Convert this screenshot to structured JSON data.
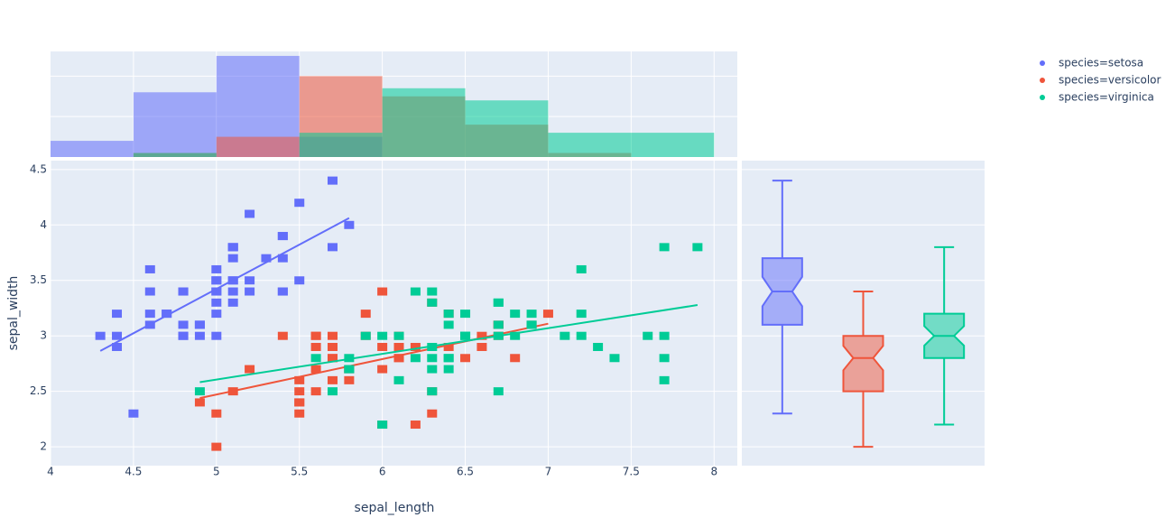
{
  "chart_data": [
    {
      "type": "scatter",
      "xlabel": "sepal_length",
      "ylabel": "sepal_width",
      "xlim": [
        4,
        8.14
      ],
      "ylim": [
        1.83,
        4.58
      ],
      "xticks": [
        4,
        4.5,
        5,
        5.5,
        6,
        6.5,
        7,
        7.5,
        8
      ],
      "yticks": [
        2,
        2.5,
        3,
        3.5,
        4,
        4.5
      ],
      "grid": true,
      "legend": "top-right",
      "series": [
        {
          "name": "species=setosa",
          "color": "#636efa",
          "x": [
            5.1,
            4.9,
            4.7,
            4.6,
            5.0,
            5.4,
            4.6,
            5.0,
            4.4,
            4.9,
            5.4,
            4.8,
            4.8,
            4.3,
            5.8,
            5.7,
            5.4,
            5.1,
            5.7,
            5.1,
            5.4,
            5.1,
            4.6,
            5.1,
            4.8,
            5.0,
            5.0,
            5.2,
            5.2,
            4.7,
            4.8,
            5.4,
            5.2,
            5.5,
            4.9,
            5.0,
            5.5,
            4.9,
            4.4,
            5.1,
            5.0,
            4.5,
            4.4,
            5.0,
            5.1,
            4.8,
            5.1,
            4.6,
            5.3,
            5.0
          ],
          "values": [
            3.5,
            3.0,
            3.2,
            3.1,
            3.6,
            3.9,
            3.4,
            3.4,
            2.9,
            3.1,
            3.7,
            3.4,
            3.0,
            3.0,
            4.0,
            4.4,
            3.9,
            3.5,
            3.8,
            3.8,
            3.4,
            3.7,
            3.6,
            3.3,
            3.4,
            3.0,
            3.4,
            3.5,
            3.4,
            3.2,
            3.1,
            3.4,
            4.1,
            4.2,
            3.1,
            3.2,
            3.5,
            3.1,
            3.0,
            3.4,
            3.5,
            2.3,
            3.2,
            3.5,
            3.8,
            3.0,
            3.8,
            3.2,
            3.7,
            3.3
          ],
          "trendline": {
            "x": [
              4.3,
              5.8
            ],
            "values": [
              2.864,
              4.062
            ]
          }
        },
        {
          "name": "species=versicolor",
          "color": "#ef553b",
          "x": [
            7.0,
            6.4,
            6.9,
            5.5,
            6.5,
            5.7,
            6.3,
            4.9,
            6.6,
            5.2,
            5.0,
            5.9,
            6.0,
            6.1,
            5.6,
            6.7,
            5.6,
            5.8,
            6.2,
            5.6,
            5.9,
            6.1,
            6.3,
            6.1,
            6.4,
            6.6,
            6.8,
            6.7,
            6.0,
            5.7,
            5.5,
            5.5,
            5.8,
            6.0,
            5.4,
            6.0,
            6.7,
            6.3,
            5.6,
            5.5,
            5.5,
            6.1,
            5.8,
            5.0,
            5.6,
            5.7,
            5.7,
            6.2,
            5.1,
            5.7
          ],
          "values": [
            3.2,
            3.2,
            3.1,
            2.3,
            2.8,
            2.8,
            3.3,
            2.4,
            2.9,
            2.7,
            2.0,
            3.0,
            2.2,
            2.9,
            2.9,
            3.1,
            3.0,
            2.7,
            2.2,
            2.5,
            3.2,
            2.8,
            2.5,
            2.8,
            2.9,
            3.0,
            2.8,
            3.0,
            2.9,
            2.6,
            2.4,
            2.4,
            2.7,
            2.7,
            3.0,
            3.4,
            3.1,
            2.3,
            3.0,
            2.5,
            2.6,
            3.0,
            2.6,
            2.3,
            2.7,
            3.0,
            2.9,
            2.9,
            2.5,
            2.8
          ],
          "trendline": {
            "x": [
              4.9,
              7.0
            ],
            "values": [
              2.439,
              3.11
            ]
          }
        },
        {
          "name": "species=virginica",
          "color": "#00cc96",
          "x": [
            6.3,
            5.8,
            7.1,
            6.3,
            6.5,
            7.6,
            4.9,
            7.3,
            6.7,
            7.2,
            6.5,
            6.4,
            6.8,
            5.7,
            5.8,
            6.4,
            6.5,
            7.7,
            7.7,
            6.0,
            6.9,
            5.6,
            7.7,
            6.3,
            6.7,
            7.2,
            6.2,
            6.1,
            6.4,
            7.2,
            7.4,
            7.9,
            6.4,
            6.3,
            6.1,
            7.7,
            6.3,
            6.4,
            6.0,
            6.9,
            6.7,
            6.9,
            5.8,
            6.8,
            6.7,
            6.7,
            6.3,
            6.5,
            6.2,
            5.9
          ],
          "values": [
            3.3,
            2.7,
            3.0,
            2.9,
            3.0,
            3.0,
            2.5,
            2.9,
            2.5,
            3.6,
            3.2,
            2.7,
            3.0,
            2.5,
            2.8,
            3.2,
            3.0,
            3.8,
            2.6,
            2.2,
            3.2,
            2.8,
            2.8,
            2.7,
            3.3,
            3.2,
            2.8,
            3.0,
            2.8,
            3.0,
            2.8,
            3.8,
            2.8,
            2.8,
            2.6,
            3.0,
            3.4,
            3.1,
            3.0,
            3.1,
            3.1,
            3.1,
            2.7,
            3.2,
            3.3,
            3.0,
            2.5,
            3.0,
            3.4,
            3.0
          ],
          "trendline": {
            "x": [
              4.9,
              7.9
            ],
            "values": [
              2.583,
              3.278
            ]
          }
        }
      ]
    },
    {
      "type": "histogram",
      "bins": [
        4,
        4.5,
        5,
        5.5,
        6,
        6.5,
        7,
        7.5,
        8
      ],
      "xlim": [
        4,
        8.14
      ],
      "ylim": [
        0,
        26.1
      ],
      "xticks": [
        4.5,
        5,
        5.5,
        6,
        6.5,
        7,
        7.5,
        8
      ],
      "yticks": [
        10,
        20
      ],
      "grid": true,
      "series": [
        {
          "color": "#636efa",
          "values": [
            4,
            16,
            25,
            5,
            0,
            0,
            0,
            0
          ]
        },
        {
          "color": "#ef553b",
          "values": [
            0,
            1,
            5,
            20,
            15,
            8,
            1,
            0
          ]
        },
        {
          "color": "#00cc96",
          "values": [
            0,
            1,
            0,
            6,
            17,
            14,
            6,
            6
          ]
        }
      ]
    },
    {
      "type": "box",
      "notched": true,
      "ylim": [
        1.83,
        4.58
      ],
      "yticks": [
        2,
        2.5,
        3,
        3.5,
        4,
        4.5
      ],
      "grid": true,
      "series": [
        {
          "color": "#636efa",
          "min": 2.3,
          "q1": 3.1,
          "median": 3.4,
          "q3": 3.7,
          "max": 4.4
        },
        {
          "color": "#ef553b",
          "min": 2.0,
          "q1": 2.5,
          "median": 2.8,
          "q3": 3.0,
          "max": 3.4
        },
        {
          "color": "#00cc96",
          "min": 2.2,
          "q1": 2.8,
          "median": 3.0,
          "q3": 3.2,
          "max": 3.8
        }
      ]
    }
  ]
}
